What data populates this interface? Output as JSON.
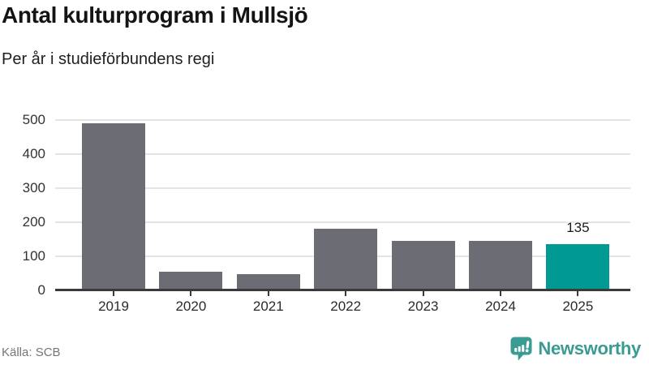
{
  "header": {
    "title": "Antal kulturprogram i Mullsjö",
    "subtitle": "Per år i studieförbundens regi"
  },
  "chart_data": {
    "type": "bar",
    "title": "Antal kulturprogram i Mullsjö",
    "subtitle": "Per år i studieförbundens regi",
    "categories": [
      "2019",
      "2020",
      "2021",
      "2022",
      "2023",
      "2024",
      "2025"
    ],
    "values": [
      490,
      55,
      48,
      180,
      145,
      145,
      135
    ],
    "value_labels": [
      "",
      "",
      "",
      "",
      "",
      "",
      "135"
    ],
    "highlight_index": 6,
    "xlabel": "",
    "ylabel": "",
    "ylim": [
      0,
      500
    ],
    "yticks": [
      0,
      100,
      200,
      300,
      400,
      500
    ],
    "grid": true,
    "legend": "none",
    "bar_color": "#6c6c74",
    "highlight_color": "#009a93"
  },
  "footer": {
    "source": "Källa: SCB",
    "brand": "Newsworthy",
    "brand_color": "#3a9b92",
    "logo_icon": "bar-chart-speech-bubble-icon"
  }
}
